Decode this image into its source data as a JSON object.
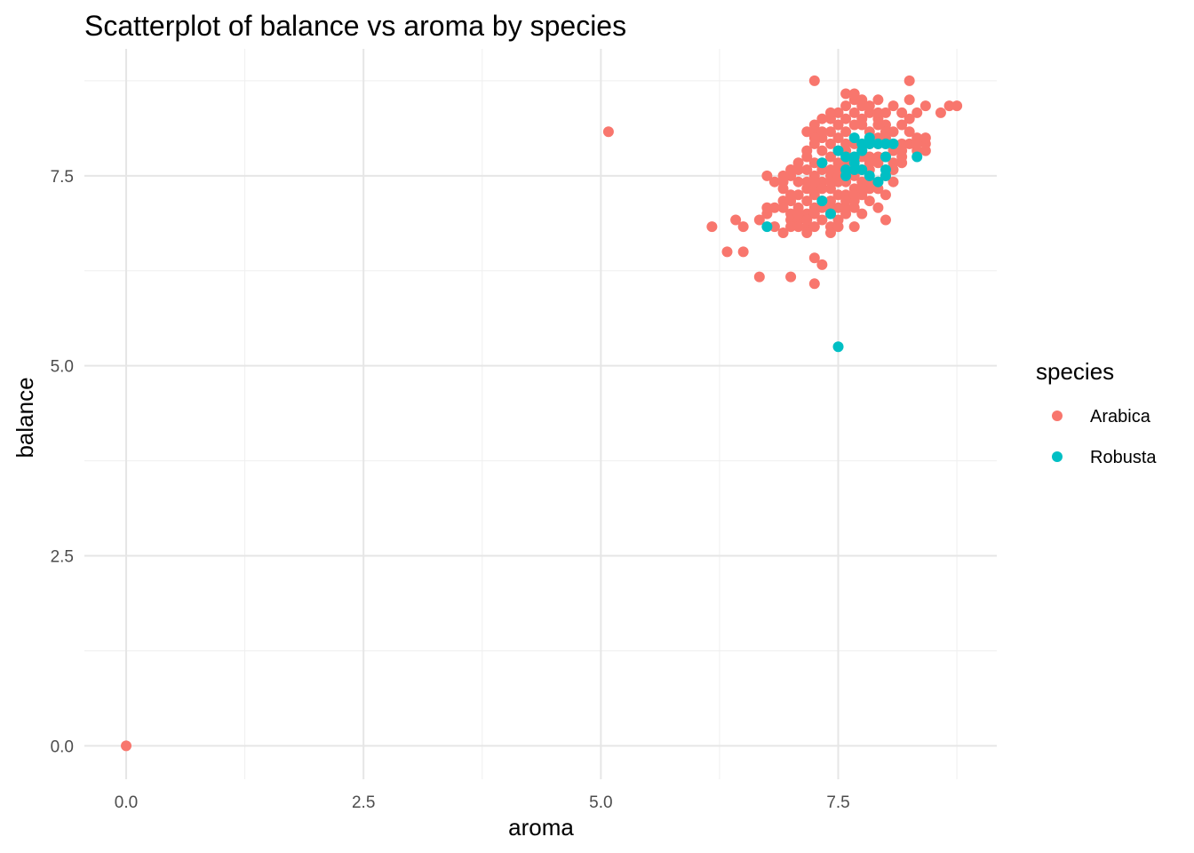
{
  "chart_data": {
    "type": "scatter",
    "title": "Scatterplot of balance vs aroma by species",
    "xlabel": "aroma",
    "ylabel": "balance",
    "xlim": [
      -0.44,
      9.17
    ],
    "ylim": [
      -0.44,
      9.17
    ],
    "xticks": [
      0.0,
      2.5,
      5.0,
      7.5
    ],
    "yticks": [
      0.0,
      2.5,
      5.0,
      7.5
    ],
    "xtick_labels": [
      "0.0",
      "2.5",
      "5.0",
      "7.5"
    ],
    "ytick_labels": [
      "0.0",
      "2.5",
      "5.0",
      "7.5"
    ],
    "grid": true,
    "legend": {
      "title": "species",
      "position": "right"
    },
    "series": [
      {
        "name": "Arabica",
        "color": "#F8766D",
        "points": [
          [
            0.0,
            0.0
          ],
          [
            5.08,
            8.08
          ],
          [
            7.25,
            8.75
          ],
          [
            8.25,
            8.75
          ],
          [
            6.17,
            6.83
          ],
          [
            6.33,
            6.5
          ],
          [
            6.5,
            6.5
          ],
          [
            6.67,
            6.17
          ],
          [
            7.0,
            6.17
          ],
          [
            7.25,
            6.08
          ],
          [
            7.33,
            6.33
          ],
          [
            7.25,
            6.42
          ],
          [
            6.42,
            6.92
          ],
          [
            6.5,
            6.83
          ],
          [
            6.67,
            6.92
          ],
          [
            6.75,
            7.0
          ],
          [
            6.75,
            7.08
          ],
          [
            6.75,
            7.5
          ],
          [
            6.83,
            7.42
          ],
          [
            6.92,
            7.5
          ],
          [
            6.92,
            7.33
          ],
          [
            7.0,
            7.5
          ],
          [
            7.08,
            7.58
          ],
          [
            7.08,
            7.08
          ],
          [
            7.0,
            7.0
          ],
          [
            7.0,
            6.92
          ],
          [
            6.92,
            6.75
          ],
          [
            6.83,
            6.83
          ],
          [
            6.92,
            7.17
          ],
          [
            7.17,
            6.83
          ],
          [
            7.17,
            7.0
          ],
          [
            7.25,
            7.08
          ],
          [
            7.33,
            7.17
          ],
          [
            7.42,
            7.17
          ],
          [
            7.5,
            7.25
          ],
          [
            7.5,
            7.42
          ],
          [
            7.42,
            7.5
          ],
          [
            7.33,
            7.58
          ],
          [
            7.25,
            7.67
          ],
          [
            7.17,
            7.75
          ],
          [
            7.17,
            7.83
          ],
          [
            7.25,
            7.92
          ],
          [
            7.33,
            7.83
          ],
          [
            7.42,
            7.75
          ],
          [
            7.5,
            7.67
          ],
          [
            7.58,
            7.58
          ],
          [
            7.58,
            7.42
          ],
          [
            7.67,
            7.33
          ],
          [
            7.75,
            7.25
          ],
          [
            7.83,
            7.17
          ],
          [
            7.92,
            7.08
          ],
          [
            8.0,
            6.92
          ],
          [
            7.42,
            6.83
          ],
          [
            7.5,
            6.92
          ],
          [
            7.58,
            7.0
          ],
          [
            7.67,
            6.83
          ],
          [
            7.67,
            7.08
          ],
          [
            7.75,
            7.0
          ],
          [
            7.83,
            7.33
          ],
          [
            7.92,
            7.42
          ],
          [
            8.0,
            7.5
          ],
          [
            8.08,
            7.58
          ],
          [
            8.17,
            7.67
          ],
          [
            8.17,
            7.83
          ],
          [
            8.25,
            7.92
          ],
          [
            8.33,
            8.0
          ],
          [
            8.33,
            7.83
          ],
          [
            8.42,
            7.92
          ],
          [
            8.42,
            7.83
          ],
          [
            8.42,
            8.0
          ],
          [
            8.25,
            8.08
          ],
          [
            8.17,
            8.17
          ],
          [
            8.08,
            8.08
          ],
          [
            8.0,
            8.17
          ],
          [
            7.92,
            8.25
          ],
          [
            7.83,
            8.33
          ],
          [
            7.75,
            8.42
          ],
          [
            7.67,
            8.5
          ],
          [
            7.58,
            8.58
          ],
          [
            7.67,
            8.58
          ],
          [
            7.75,
            8.5
          ],
          [
            7.83,
            8.42
          ],
          [
            7.92,
            8.5
          ],
          [
            8.0,
            8.33
          ],
          [
            8.08,
            8.42
          ],
          [
            8.17,
            8.33
          ],
          [
            8.25,
            8.25
          ],
          [
            8.33,
            8.33
          ],
          [
            8.42,
            8.42
          ],
          [
            8.58,
            8.33
          ],
          [
            8.67,
            8.42
          ],
          [
            8.75,
            8.42
          ],
          [
            8.25,
            8.5
          ],
          [
            7.58,
            8.42
          ],
          [
            7.5,
            8.33
          ],
          [
            7.42,
            8.25
          ],
          [
            7.42,
            8.33
          ],
          [
            7.33,
            8.25
          ],
          [
            7.25,
            8.17
          ],
          [
            7.17,
            8.08
          ],
          [
            7.25,
            8.08
          ],
          [
            7.33,
            8.0
          ],
          [
            7.42,
            7.92
          ],
          [
            7.5,
            8.0
          ],
          [
            7.58,
            8.08
          ],
          [
            7.67,
            8.17
          ],
          [
            7.75,
            8.17
          ],
          [
            7.83,
            8.08
          ],
          [
            7.92,
            8.17
          ],
          [
            8.0,
            8.08
          ],
          [
            8.08,
            7.92
          ],
          [
            8.17,
            7.75
          ],
          [
            7.92,
            7.75
          ],
          [
            7.83,
            7.67
          ],
          [
            7.75,
            7.58
          ],
          [
            7.67,
            7.5
          ],
          [
            7.58,
            7.25
          ],
          [
            7.5,
            7.08
          ],
          [
            7.42,
            7.0
          ],
          [
            7.33,
            6.92
          ],
          [
            7.25,
            6.83
          ],
          [
            7.17,
            6.75
          ],
          [
            7.08,
            6.92
          ],
          [
            7.0,
            6.83
          ],
          [
            7.08,
            7.25
          ],
          [
            7.17,
            7.33
          ],
          [
            7.17,
            7.42
          ],
          [
            7.08,
            7.42
          ],
          [
            7.0,
            7.25
          ],
          [
            7.0,
            7.17
          ],
          [
            7.25,
            7.25
          ],
          [
            7.25,
            7.33
          ],
          [
            7.33,
            7.42
          ],
          [
            7.42,
            7.33
          ],
          [
            7.5,
            7.5
          ],
          [
            7.58,
            7.67
          ],
          [
            7.67,
            7.75
          ],
          [
            7.75,
            7.83
          ],
          [
            7.83,
            7.92
          ],
          [
            7.92,
            8.0
          ],
          [
            8.0,
            7.92
          ],
          [
            8.08,
            7.83
          ],
          [
            8.0,
            7.75
          ],
          [
            7.92,
            7.67
          ],
          [
            7.83,
            7.58
          ],
          [
            7.75,
            7.42
          ],
          [
            7.67,
            7.17
          ],
          [
            7.58,
            7.08
          ],
          [
            7.5,
            6.83
          ],
          [
            7.42,
            6.75
          ],
          [
            7.33,
            7.08
          ],
          [
            7.25,
            7.0
          ],
          [
            7.08,
            7.0
          ],
          [
            6.92,
            7.08
          ],
          [
            7.17,
            7.58
          ],
          [
            7.25,
            7.5
          ],
          [
            7.33,
            7.67
          ],
          [
            7.42,
            7.58
          ],
          [
            7.5,
            7.83
          ],
          [
            7.58,
            7.83
          ],
          [
            7.58,
            7.92
          ],
          [
            7.67,
            7.92
          ],
          [
            7.75,
            7.75
          ],
          [
            7.83,
            7.75
          ],
          [
            8.08,
            7.67
          ],
          [
            8.17,
            7.92
          ],
          [
            8.33,
            7.92
          ],
          [
            8.0,
            8.0
          ],
          [
            7.92,
            7.92
          ],
          [
            7.08,
            6.83
          ],
          [
            7.17,
            6.92
          ],
          [
            6.83,
            7.08
          ],
          [
            6.92,
            7.42
          ],
          [
            7.5,
            7.58
          ],
          [
            7.42,
            7.42
          ],
          [
            7.33,
            7.33
          ],
          [
            7.25,
            7.42
          ],
          [
            7.08,
            7.67
          ],
          [
            7.0,
            7.58
          ],
          [
            7.17,
            7.17
          ],
          [
            7.42,
            7.08
          ],
          [
            7.58,
            7.17
          ],
          [
            7.67,
            7.25
          ],
          [
            7.75,
            7.33
          ],
          [
            7.83,
            7.42
          ],
          [
            7.92,
            7.33
          ],
          [
            8.0,
            7.25
          ],
          [
            8.08,
            7.42
          ],
          [
            7.92,
            8.33
          ],
          [
            7.75,
            8.25
          ],
          [
            7.67,
            8.33
          ],
          [
            7.58,
            8.25
          ],
          [
            7.5,
            8.17
          ],
          [
            7.42,
            8.08
          ],
          [
            7.33,
            8.08
          ],
          [
            7.25,
            8.0
          ]
        ]
      },
      {
        "name": "Robusta",
        "color": "#00BFC4",
        "points": [
          [
            7.5,
            5.25
          ],
          [
            6.75,
            6.83
          ],
          [
            7.33,
            7.17
          ],
          [
            7.42,
            7.0
          ],
          [
            7.33,
            7.67
          ],
          [
            7.5,
            7.83
          ],
          [
            7.58,
            7.5
          ],
          [
            7.58,
            7.58
          ],
          [
            7.67,
            7.58
          ],
          [
            7.67,
            7.67
          ],
          [
            7.67,
            8.0
          ],
          [
            7.75,
            7.83
          ],
          [
            7.75,
            7.92
          ],
          [
            7.83,
            7.92
          ],
          [
            7.83,
            7.5
          ],
          [
            7.92,
            7.92
          ],
          [
            7.92,
            7.42
          ],
          [
            8.0,
            7.5
          ],
          [
            8.0,
            7.58
          ],
          [
            8.0,
            7.75
          ],
          [
            8.0,
            7.92
          ],
          [
            8.08,
            7.92
          ],
          [
            8.33,
            7.75
          ],
          [
            7.75,
            7.58
          ],
          [
            7.83,
            8.0
          ],
          [
            7.58,
            7.75
          ],
          [
            7.67,
            7.75
          ]
        ]
      }
    ]
  }
}
